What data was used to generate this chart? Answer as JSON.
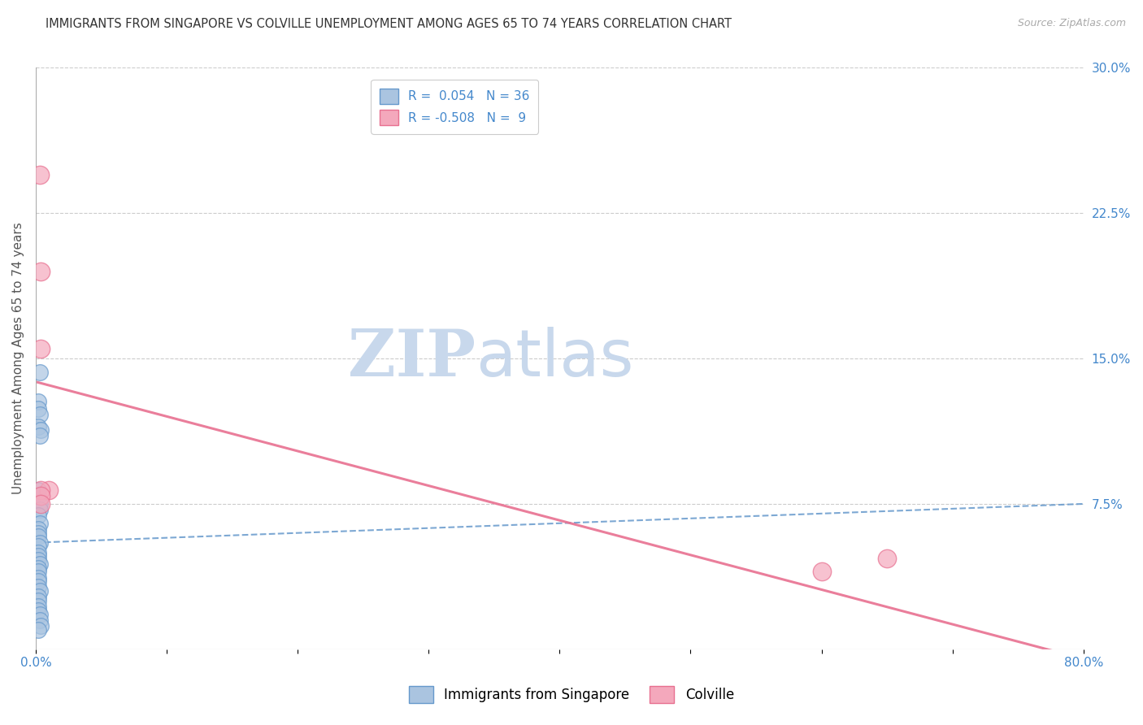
{
  "title": "IMMIGRANTS FROM SINGAPORE VS COLVILLE UNEMPLOYMENT AMONG AGES 65 TO 74 YEARS CORRELATION CHART",
  "source": "Source: ZipAtlas.com",
  "ylabel": "Unemployment Among Ages 65 to 74 years",
  "xlabel": "",
  "xlim": [
    0,
    0.8
  ],
  "ylim": [
    0,
    0.3
  ],
  "xticks": [
    0.0,
    0.1,
    0.2,
    0.3,
    0.4,
    0.5,
    0.6,
    0.7,
    0.8
  ],
  "xticklabels": [
    "0.0%",
    "",
    "",
    "",
    "",
    "",
    "",
    "",
    "80.0%"
  ],
  "ytick_positions": [
    0.075,
    0.15,
    0.225,
    0.3
  ],
  "ytick_labels_right": [
    "7.5%",
    "15.0%",
    "22.5%",
    "30.0%"
  ],
  "watermark_zip": "ZIP",
  "watermark_atlas": "atlas",
  "legend_blue_R": "0.054",
  "legend_blue_N": "36",
  "legend_pink_R": "-0.508",
  "legend_pink_N": "9",
  "blue_scatter_x": [
    0.003,
    0.002,
    0.002,
    0.003,
    0.002,
    0.004,
    0.003,
    0.002,
    0.002,
    0.003,
    0.003,
    0.002,
    0.003,
    0.002,
    0.002,
    0.002,
    0.003,
    0.002,
    0.002,
    0.002,
    0.002,
    0.003,
    0.002,
    0.002,
    0.002,
    0.002,
    0.002,
    0.003,
    0.002,
    0.002,
    0.002,
    0.002,
    0.003,
    0.003,
    0.004,
    0.002
  ],
  "blue_scatter_y": [
    0.143,
    0.128,
    0.124,
    0.121,
    0.115,
    0.113,
    0.11,
    0.082,
    0.079,
    0.075,
    0.072,
    0.069,
    0.065,
    0.062,
    0.06,
    0.058,
    0.055,
    0.053,
    0.05,
    0.048,
    0.046,
    0.044,
    0.042,
    0.04,
    0.037,
    0.035,
    0.032,
    0.03,
    0.027,
    0.025,
    0.022,
    0.02,
    0.018,
    0.015,
    0.012,
    0.01
  ],
  "pink_scatter_x": [
    0.003,
    0.004,
    0.004,
    0.01,
    0.004,
    0.004,
    0.004,
    0.6,
    0.65
  ],
  "pink_scatter_y": [
    0.245,
    0.195,
    0.155,
    0.082,
    0.082,
    0.079,
    0.075,
    0.04,
    0.047
  ],
  "blue_trend_x": [
    0.0,
    0.8
  ],
  "blue_trend_y": [
    0.055,
    0.075
  ],
  "pink_trend_x": [
    0.0,
    0.8
  ],
  "pink_trend_y": [
    0.138,
    -0.005
  ],
  "blue_color": "#6699CC",
  "blue_scatter_color": "#aac4e0",
  "pink_color": "#E87090",
  "pink_scatter_color": "#f4a8bc",
  "grid_color": "#cccccc",
  "title_color": "#333333",
  "axis_label_color": "#555555",
  "right_tick_color": "#4488cc",
  "watermark_color": "#dce8f5"
}
